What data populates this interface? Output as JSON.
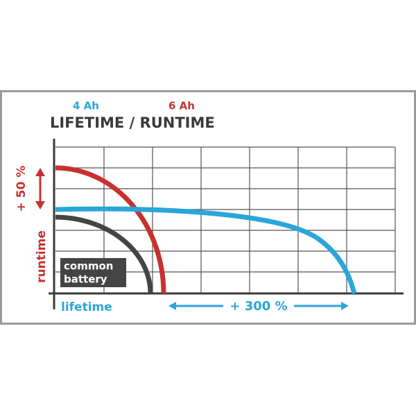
{
  "header": {
    "capacity_4": "4 Ah",
    "capacity_6": "6 Ah",
    "title": "LIFETIME / RUNTIME"
  },
  "annotations": {
    "runtime_gain": "+ 50 %",
    "y_label": "runtime",
    "common_battery": [
      "common",
      "battery"
    ],
    "x_label": "lifetime",
    "lifetime_gain": "+ 300 %"
  }
}
